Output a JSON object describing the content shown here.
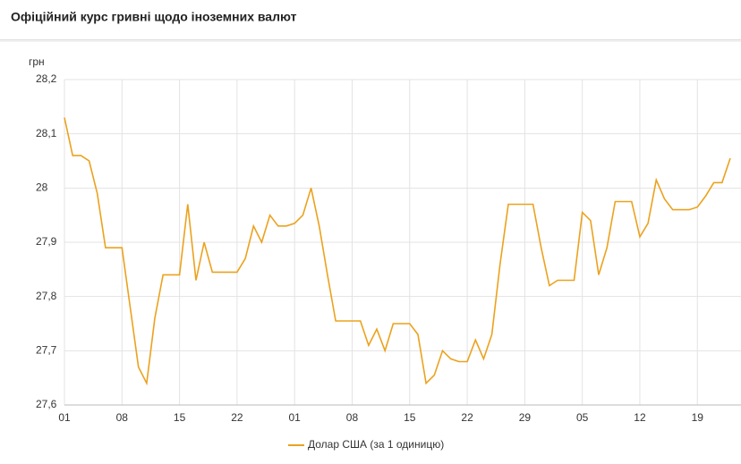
{
  "header": {
    "title": "Офіційний курс гривні щодо іноземних валют"
  },
  "chart_data": {
    "type": "line",
    "y_label": "грн",
    "categories": [
      "01",
      null,
      null,
      null,
      null,
      null,
      null,
      "08",
      null,
      null,
      null,
      null,
      null,
      null,
      "15",
      null,
      null,
      null,
      null,
      null,
      null,
      "22",
      null,
      null,
      null,
      null,
      null,
      null,
      "01",
      null,
      null,
      null,
      null,
      null,
      null,
      "08",
      null,
      null,
      null,
      null,
      null,
      null,
      "15",
      null,
      null,
      null,
      null,
      null,
      null,
      "22",
      null,
      null,
      null,
      null,
      null,
      null,
      "29",
      null,
      null,
      null,
      null,
      null,
      null,
      "05",
      null,
      null,
      null,
      null,
      null,
      null,
      "12",
      null,
      null,
      null,
      null,
      null,
      null,
      "19",
      null,
      null,
      null,
      null
    ],
    "series": [
      {
        "name": "Долар США (за 1 одиницю)",
        "color": "#eba21d",
        "values": [
          28.13,
          28.06,
          28.06,
          28.05,
          27.99,
          27.89,
          27.89,
          27.89,
          27.78,
          27.67,
          27.64,
          27.76,
          27.84,
          27.84,
          27.84,
          27.97,
          27.83,
          27.9,
          27.845,
          27.845,
          27.845,
          27.845,
          27.87,
          27.93,
          27.9,
          27.95,
          27.93,
          27.93,
          27.935,
          27.95,
          28.0,
          27.93,
          27.84,
          27.755,
          27.755,
          27.755,
          27.755,
          27.71,
          27.74,
          27.7,
          27.75,
          27.75,
          27.75,
          27.73,
          27.64,
          27.655,
          27.7,
          27.685,
          27.68,
          27.68,
          27.72,
          27.685,
          27.73,
          27.86,
          27.97,
          27.97,
          27.97,
          27.97,
          27.89,
          27.82,
          27.83,
          27.83,
          27.83,
          27.955,
          27.94,
          27.84,
          27.89,
          27.975,
          27.975,
          27.975,
          27.91,
          27.935,
          28.015,
          27.98,
          27.96,
          27.96,
          27.96,
          27.965,
          27.985,
          28.01,
          28.01,
          28.055
        ]
      }
    ],
    "ylim": [
      27.6,
      28.2
    ],
    "yticks": [
      {
        "value": 27.6,
        "label": "27,6"
      },
      {
        "value": 27.7,
        "label": "27,7"
      },
      {
        "value": 27.8,
        "label": "27,8"
      },
      {
        "value": 27.9,
        "label": "27,9"
      },
      28,
      {
        "value": 28.1,
        "label": "28,1"
      },
      {
        "value": 28.2,
        "label": "28,2"
      }
    ],
    "grid": true
  }
}
